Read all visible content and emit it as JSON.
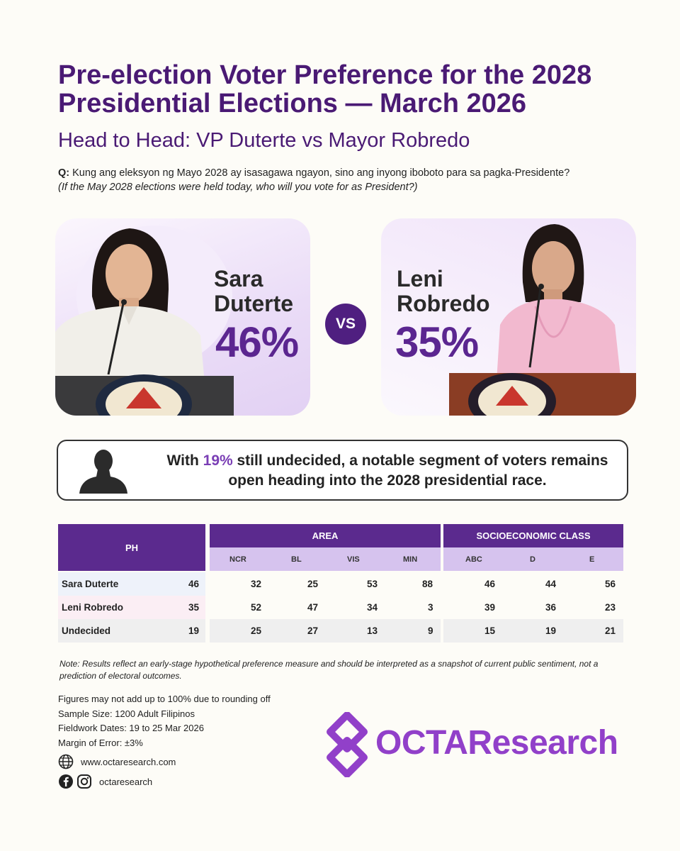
{
  "header": {
    "title": "Pre-election Voter Preference for the 2028 Presidential Elections  — March 2026",
    "subtitle": "Head to Head: VP Duterte vs Mayor Robredo",
    "question_label": "Q:",
    "question_tl": "Kung ang eleksyon ng Mayo 2028 ay isasagawa ngayon, sino ang inyong iboboto para sa pagka-Presidente?",
    "question_en": "(If the May 2028 elections were held today, who will you vote for as President?)"
  },
  "candidates": {
    "left": {
      "first": "Sara",
      "last": "Duterte",
      "pct": "46%"
    },
    "right": {
      "first": "Leni",
      "last": "Robredo",
      "pct": "35%"
    },
    "vs": "VS"
  },
  "callout": {
    "pre": "With ",
    "highlight": "19%",
    "post": " still undecided, a notable segment of voters remains open heading into the 2028 presidential race."
  },
  "table": {
    "ph_header": "PH",
    "area_header": "AREA",
    "ses_header": "SOCIOECONOMIC CLASS",
    "area_cols": [
      "NCR",
      "BL",
      "VIS",
      "MIN"
    ],
    "ses_cols": [
      "ABC",
      "D",
      "E"
    ],
    "rows": [
      {
        "name": "Sara Duterte",
        "ph": "46",
        "area": [
          "32",
          "25",
          "53",
          "88"
        ],
        "ses": [
          "46",
          "44",
          "56"
        ]
      },
      {
        "name": "Leni Robredo",
        "ph": "35",
        "area": [
          "52",
          "47",
          "34",
          "3"
        ],
        "ses": [
          "39",
          "36",
          "23"
        ]
      },
      {
        "name": "Undecided",
        "ph": "19",
        "area": [
          "25",
          "27",
          "13",
          "9"
        ],
        "ses": [
          "15",
          "19",
          "21"
        ]
      }
    ]
  },
  "note": "Note: Results reflect an early-stage hypothetical preference measure and should be interpreted as a snapshot of current public sentiment, not a prediction of electoral outcomes.",
  "methodology": {
    "rounding": "Figures may not add up to 100% due to rounding off",
    "sample": "Sample Size: 1200 Adult Filipinos",
    "fieldwork": "Fieldwork Dates: 19 to 25 Mar 2026",
    "moe": "Margin of Error: ±3%"
  },
  "footer": {
    "website": "www.octaresearch.com",
    "social_handle": "octaresearch",
    "logo_text": "OCTAResearch"
  },
  "colors": {
    "brand_purple": "#4a1a74",
    "accent": "#5b2690",
    "logo": "#9140c9"
  }
}
